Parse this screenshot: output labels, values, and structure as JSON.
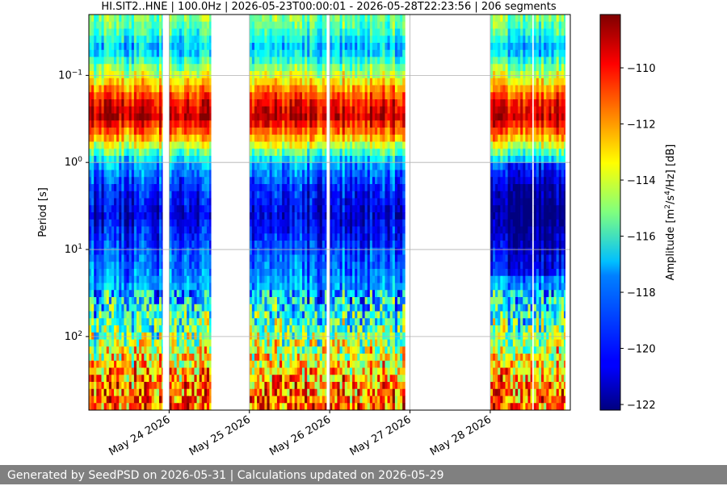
{
  "chart_data": {
    "type": "heatmap",
    "title": "HI.SIT2..HNE | 100.0Hz | 2026-05-23T00:00:01 - 2026-05-28T22:23:56 | 206 segments",
    "ylabel": "Period [s]",
    "y_scale": "log",
    "y_inverted": true,
    "ylim": [
      0.02,
      700
    ],
    "y_ticks": [
      0.1,
      1,
      10,
      100
    ],
    "y_tick_labels": [
      "10",
      "10",
      "10",
      "10"
    ],
    "y_tick_exponents": [
      "−1",
      "0",
      "1",
      "2"
    ],
    "x_tick_labels": [
      "May 24 2026",
      "May 25 2026",
      "May 26 2026",
      "May 27 2026",
      "May 28 2026"
    ],
    "colorbar_label": "Amplitude [m²/s⁴/Hz] [dB]",
    "colorbar_range": [
      -122.2,
      -108.1
    ],
    "colorbar_ticks": [
      -110,
      -112,
      -114,
      -116,
      -118,
      -120,
      -122
    ],
    "colormap": "jet",
    "grid": true,
    "data_segments": [
      {
        "start": "2026-05-23T00:00",
        "end": "2026-05-23T22:00"
      },
      {
        "start": "2026-05-24T00:00",
        "end": "2026-05-24T12:30"
      },
      {
        "start": "2026-05-25T00:00",
        "end": "2026-05-25T23:00"
      },
      {
        "start": "2026-05-26T00:00",
        "end": "2026-05-26T22:30"
      },
      {
        "start": "2026-05-28T00:00",
        "end": "2026-05-28T12:30"
      },
      {
        "start": "2026-05-28T13:00",
        "end": "2026-05-28T22:24"
      }
    ],
    "psd_profile": {
      "periods": [
        0.02,
        0.03,
        0.05,
        0.1,
        0.2,
        0.3,
        0.5,
        1,
        2,
        4,
        10,
        30,
        100,
        300,
        700
      ],
      "amplitudes_db": [
        -115,
        -116,
        -118,
        -114,
        -110,
        -109,
        -112,
        -118,
        -120,
        -121,
        -119.5,
        -118,
        -115,
        -112,
        -111
      ]
    }
  },
  "footer": {
    "text": "Generated by SeedPSD on 2026-05-31 | Calculations updated on 2026-05-29"
  }
}
